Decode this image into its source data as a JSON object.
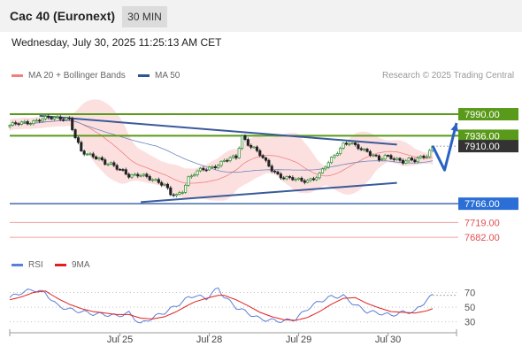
{
  "header": {
    "title": "Cac 40 (Euronext)",
    "timeframe": "30 MIN",
    "datetime": "Wednesday, July 30, 2025 11:25:13 AM CET"
  },
  "legend": [
    {
      "label": "MA 20 + Bollinger Bands",
      "color": "#f08080"
    },
    {
      "label": "MA 50",
      "color": "#2e5597"
    }
  ],
  "credit": "Research © 2025 Trading Central",
  "colors": {
    "resistance": "#5a9a1a",
    "support": "#1f4e9c",
    "target": "#e05050",
    "trendline": "#3a5a9a",
    "last_price": "#333333",
    "candle_up": "#2d8a2d",
    "candle_down": "#222222",
    "rsi": "#5a7fd6",
    "rsi_ma": "#e02020"
  },
  "chart_data": [
    {
      "type": "candlestick",
      "title": "Cac 40 (Euronext) 30 MIN",
      "x_tick_labels": [
        "Jul 25",
        "Jul 28",
        "Jul 29",
        "Jul 30"
      ],
      "ylim": [
        7660,
        8010
      ],
      "price_levels": [
        {
          "value": 7990.0,
          "label": "7990.00",
          "kind": "resistance"
        },
        {
          "value": 7936.0,
          "label": "7936.00",
          "kind": "resistance"
        },
        {
          "value": 7910.0,
          "label": "7910.00",
          "kind": "last"
        },
        {
          "value": 7766.0,
          "label": "7766.00",
          "kind": "support"
        },
        {
          "value": 7719.0,
          "label": "7719.00",
          "kind": "target"
        },
        {
          "value": 7682.0,
          "label": "7682.00",
          "kind": "target"
        }
      ],
      "close_path": [
        [
          0,
          7962
        ],
        [
          5,
          7968
        ],
        [
          10,
          7977
        ],
        [
          15,
          7980
        ],
        [
          18,
          7982
        ],
        [
          20,
          7978
        ],
        [
          22,
          7930
        ],
        [
          24,
          7895
        ],
        [
          26,
          7890
        ],
        [
          28,
          7888
        ],
        [
          30,
          7880
        ],
        [
          32,
          7866
        ],
        [
          34,
          7862
        ],
        [
          36,
          7856
        ],
        [
          38,
          7850
        ],
        [
          40,
          7838
        ],
        [
          42,
          7835
        ],
        [
          44,
          7836
        ],
        [
          46,
          7832
        ],
        [
          48,
          7829
        ],
        [
          50,
          7822
        ],
        [
          52,
          7812
        ],
        [
          54,
          7788
        ],
        [
          56,
          7785
        ],
        [
          58,
          7800
        ],
        [
          60,
          7832
        ],
        [
          62,
          7842
        ],
        [
          64,
          7848
        ],
        [
          66,
          7852
        ],
        [
          68,
          7858
        ],
        [
          70,
          7866
        ],
        [
          72,
          7874
        ],
        [
          74,
          7878
        ],
        [
          76,
          7880
        ],
        [
          78,
          7935
        ],
        [
          80,
          7918
        ],
        [
          82,
          7905
        ],
        [
          84,
          7888
        ],
        [
          86,
          7868
        ],
        [
          88,
          7852
        ],
        [
          90,
          7840
        ],
        [
          92,
          7832
        ],
        [
          94,
          7828
        ],
        [
          96,
          7825
        ],
        [
          98,
          7824
        ],
        [
          100,
          7826
        ],
        [
          102,
          7830
        ],
        [
          104,
          7838
        ],
        [
          106,
          7858
        ],
        [
          108,
          7878
        ],
        [
          110,
          7898
        ],
        [
          112,
          7916
        ],
        [
          114,
          7918
        ],
        [
          116,
          7908
        ],
        [
          118,
          7902
        ],
        [
          120,
          7898
        ],
        [
          122,
          7890
        ],
        [
          124,
          7876
        ],
        [
          126,
          7882
        ],
        [
          128,
          7880
        ],
        [
          130,
          7878
        ],
        [
          132,
          7874
        ],
        [
          134,
          7876
        ],
        [
          136,
          7872
        ],
        [
          138,
          7880
        ],
        [
          140,
          7888
        ],
        [
          142,
          7910
        ]
      ],
      "forecast_path": [
        [
          142,
          7910
        ],
        [
          146,
          7850
        ],
        [
          150,
          7968
        ]
      ],
      "trendlines": [
        {
          "from": [
            10,
            7986
          ],
          "to": [
            130,
            7914
          ]
        },
        {
          "from": [
            44,
            7770
          ],
          "to": [
            130,
            7818
          ]
        }
      ]
    },
    {
      "type": "line",
      "title": "RSI",
      "ylim": [
        20,
        85
      ],
      "y_ticks": [
        70,
        50,
        30
      ],
      "series": [
        {
          "name": "RSI",
          "values": [
            [
              0,
              63
            ],
            [
              4,
              70
            ],
            [
              8,
              74
            ],
            [
              12,
              69
            ],
            [
              16,
              52
            ],
            [
              20,
              47
            ],
            [
              24,
              44
            ],
            [
              28,
              41
            ],
            [
              32,
              40
            ],
            [
              36,
              38
            ],
            [
              40,
              42
            ],
            [
              44,
              27
            ],
            [
              48,
              36
            ],
            [
              52,
              43
            ],
            [
              56,
              52
            ],
            [
              60,
              63
            ],
            [
              62,
              66
            ],
            [
              66,
              62
            ],
            [
              70,
              76
            ],
            [
              72,
              64
            ],
            [
              76,
              50
            ],
            [
              80,
              42
            ],
            [
              84,
              34
            ],
            [
              88,
              32
            ],
            [
              92,
              31
            ],
            [
              96,
              34
            ],
            [
              100,
              48
            ],
            [
              104,
              58
            ],
            [
              108,
              64
            ],
            [
              112,
              65
            ],
            [
              116,
              53
            ],
            [
              120,
              44
            ],
            [
              124,
              42
            ],
            [
              128,
              39
            ],
            [
              132,
              43
            ],
            [
              136,
              44
            ],
            [
              140,
              60
            ],
            [
              142,
              66
            ]
          ]
        },
        {
          "name": "9MA",
          "values": [
            [
              0,
              60
            ],
            [
              4,
              64
            ],
            [
              8,
              70
            ],
            [
              12,
              72
            ],
            [
              16,
              62
            ],
            [
              20,
              54
            ],
            [
              24,
              48
            ],
            [
              28,
              44
            ],
            [
              32,
              42
            ],
            [
              36,
              40
            ],
            [
              40,
              40
            ],
            [
              44,
              35
            ],
            [
              48,
              34
            ],
            [
              52,
              37
            ],
            [
              56,
              44
            ],
            [
              60,
              53
            ],
            [
              62,
              57
            ],
            [
              66,
              62
            ],
            [
              70,
              66
            ],
            [
              72,
              66
            ],
            [
              76,
              60
            ],
            [
              80,
              52
            ],
            [
              84,
              43
            ],
            [
              88,
              37
            ],
            [
              92,
              33
            ],
            [
              96,
              32
            ],
            [
              100,
              36
            ],
            [
              104,
              44
            ],
            [
              108,
              54
            ],
            [
              112,
              62
            ],
            [
              116,
              63
            ],
            [
              120,
              55
            ],
            [
              124,
              49
            ],
            [
              128,
              44
            ],
            [
              132,
              43
            ],
            [
              136,
              42
            ],
            [
              140,
              45
            ],
            [
              142,
              48
            ]
          ]
        }
      ]
    }
  ]
}
